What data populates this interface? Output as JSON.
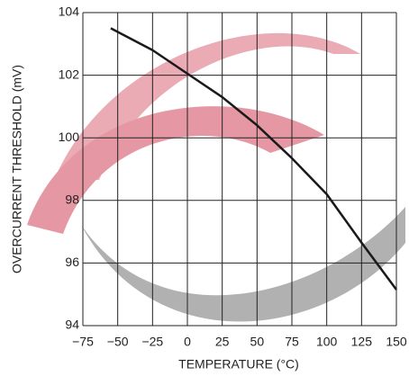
{
  "chart_data": {
    "type": "line",
    "x_label": "TEMPERATURE (°C)",
    "y_label": "OVERCURRENT THRESHOLD (mV)",
    "series": [
      {
        "color": "#1a1a1a",
        "x": [
          -55,
          -25,
          0,
          25,
          50,
          75,
          100,
          125,
          150
        ],
        "values": [
          103.5,
          102.8,
          102.05,
          101.3,
          100.4,
          99.35,
          98.2,
          96.65,
          95.15
        ]
      }
    ],
    "xlim": [
      -75,
      150
    ],
    "xticks": [
      {
        "value": -75,
        "label": "−75"
      },
      {
        "value": -50,
        "label": "−50"
      },
      {
        "value": -25,
        "label": "−25"
      },
      0,
      25,
      50,
      75,
      100,
      125,
      150
    ],
    "ylim": [
      94,
      104
    ],
    "yticks": [
      94,
      96,
      98,
      100,
      102,
      104
    ],
    "grid": true
  }
}
